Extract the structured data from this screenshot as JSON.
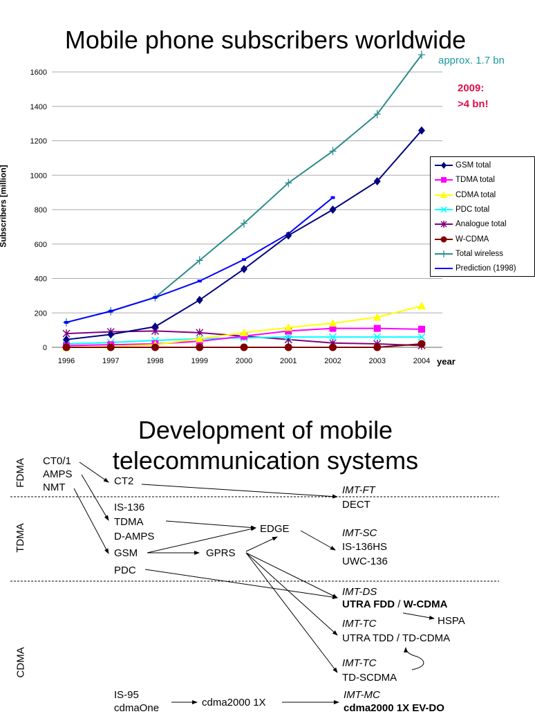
{
  "chart_title": "Mobile phone subscribers worldwide",
  "annotations": {
    "approx": "approx. 1.7 bn",
    "year2009": "2009:",
    "bn4": ">4 bn!"
  },
  "colors": {
    "approx": "#1a9a9a",
    "year2009": "#e0104a"
  },
  "chart_data": {
    "type": "line",
    "ylabel": "Subscribers [million]",
    "xlabel": "year",
    "ylim": [
      0,
      1600
    ],
    "yticks": [
      "0",
      "200",
      "400",
      "600",
      "800",
      "1000",
      "1200",
      "1400",
      "1600"
    ],
    "categories": [
      "1996",
      "1997",
      "1998",
      "1999",
      "2000",
      "2001",
      "2002",
      "2003",
      "2004"
    ],
    "grid": true,
    "legend_position": "right",
    "series": [
      {
        "name": "GSM total",
        "color": "#000080",
        "marker": "diamond",
        "values": [
          45,
          75,
          120,
          275,
          455,
          650,
          800,
          965,
          1260
        ]
      },
      {
        "name": "TDMA total",
        "color": "#ff00ff",
        "marker": "square",
        "values": [
          10,
          15,
          20,
          35,
          65,
          95,
          110,
          110,
          105
        ]
      },
      {
        "name": "CDMA total",
        "color": "#ffff00",
        "marker": "triangle",
        "values": [
          0,
          5,
          15,
          50,
          85,
          115,
          140,
          175,
          240
        ]
      },
      {
        "name": "PDC total",
        "color": "#00ffff",
        "marker": "x",
        "values": [
          20,
          28,
          40,
          50,
          55,
          60,
          60,
          60,
          60
        ]
      },
      {
        "name": "Analogue total",
        "color": "#800080",
        "marker": "asterisk",
        "values": [
          80,
          90,
          95,
          85,
          65,
          45,
          25,
          20,
          10
        ]
      },
      {
        "name": "W-CDMA",
        "color": "#800000",
        "marker": "circle",
        "values": [
          0,
          0,
          0,
          0,
          0,
          0,
          0,
          0,
          20
        ]
      },
      {
        "name": "Total wireless",
        "color": "#2a8a8a",
        "marker": "plus",
        "values": [
          145,
          210,
          290,
          505,
          720,
          955,
          1140,
          1355,
          1700
        ]
      },
      {
        "name": "Prediction (1998)",
        "color": "#0000ff",
        "marker": "none",
        "values": [
          145,
          210,
          290,
          385,
          510,
          660,
          870,
          null,
          null
        ]
      }
    ]
  },
  "diagram": {
    "title_line1": "Development of mobile",
    "title_line2": "telecommunication systems",
    "bands": [
      "FDMA",
      "TDMA",
      "CDMA"
    ],
    "nodes": {
      "ct01": "CT0/1",
      "amps": "AMPS",
      "nmt": "NMT",
      "ct2": "CT2",
      "imtft": "IMT-FT",
      "dect": "DECT",
      "is136": "IS-136",
      "tdma": "TDMA",
      "damps": "D-AMPS",
      "gsm": "GSM",
      "pdc": "PDC",
      "gprs": "GPRS",
      "edge": "EDGE",
      "imtsc": "IMT-SC",
      "is136hs": "IS-136HS",
      "uwc136": "UWC-136",
      "imtds": "IMT-DS",
      "utrafdd": "UTRA FDD",
      "slash": " / ",
      "wcdma": "W-CDMA",
      "hspa": "HSPA",
      "imttc1": "IMT-TC",
      "utratdd": "UTRA TDD / TD-CDMA",
      "imttc2": "IMT-TC",
      "tdscdma": "TD-SCDMA",
      "is95": "IS-95",
      "cdmaone": "cdmaOne",
      "cdma2000": "cdma2000 1X",
      "imtmc": "IMT-MC",
      "evdo": "cdma2000 1X EV-DO"
    }
  }
}
